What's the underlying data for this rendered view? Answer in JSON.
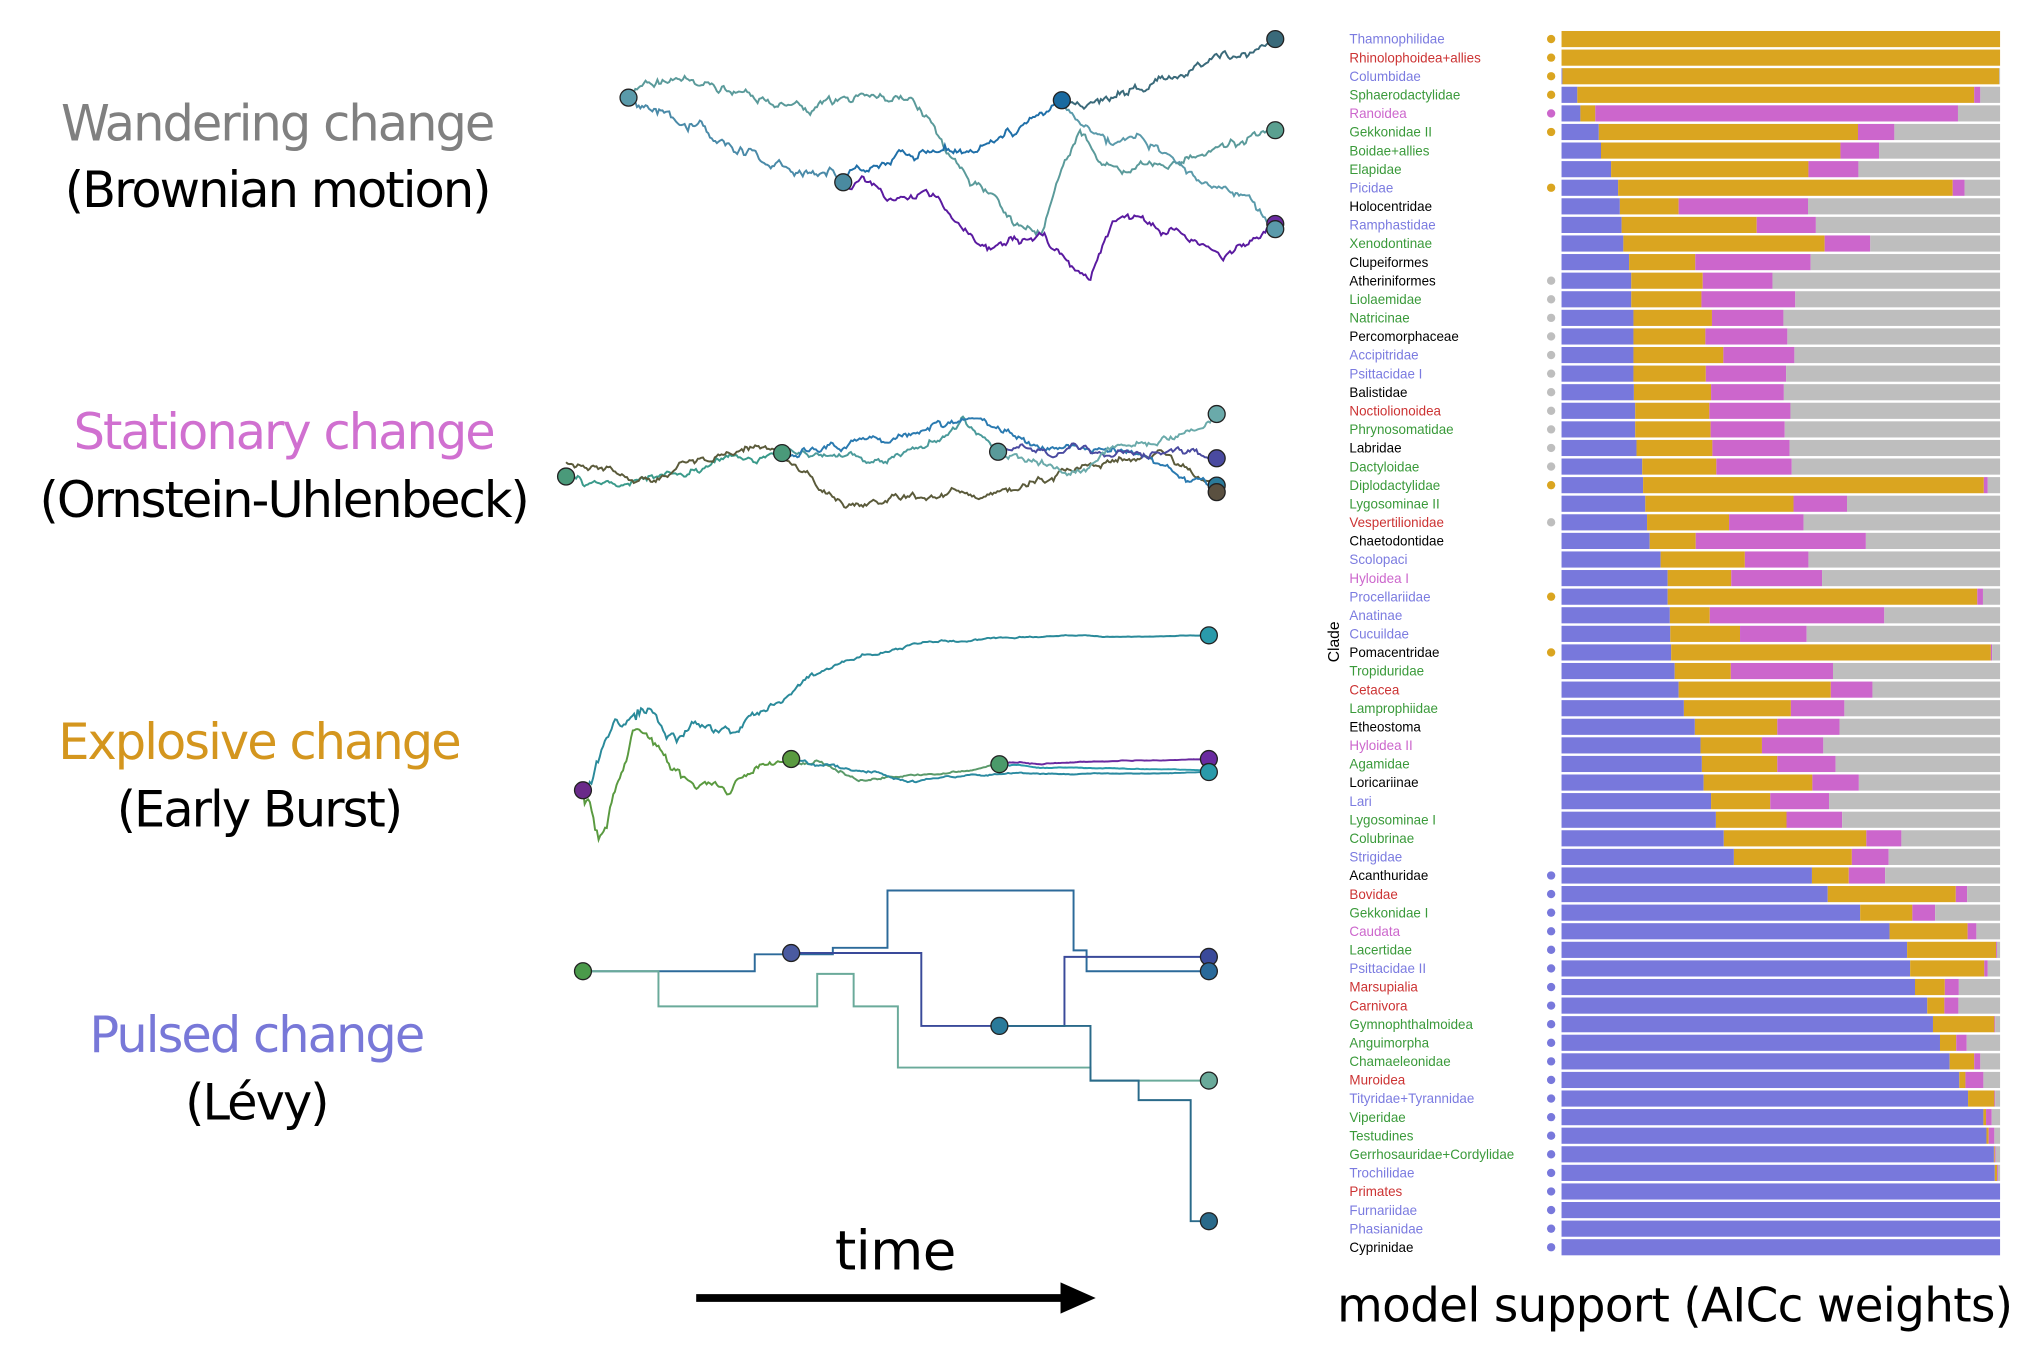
{
  "models": [
    {
      "name": "Wandering change",
      "method": "(Brownian motion)",
      "color": "#808080"
    },
    {
      "name": "Stationary change",
      "method": "(Ornstein-Uhlenbeck)",
      "color": "#d070d0"
    },
    {
      "name": "Explosive change",
      "method": "(Early Burst)",
      "color": "#d4961e"
    },
    {
      "name": "Pulsed change",
      "method": "(Lévy)",
      "color": "#7878d8"
    }
  ],
  "time_label": "time",
  "chart_title": "model support (AICc weights)",
  "chart_data": {
    "type": "bar",
    "orientation": "horizontal-stacked",
    "ylabel": "Clade",
    "xlim": [
      0,
      1
    ],
    "series_colors": {
      "BM": "#7878dc",
      "EB": "#daa520",
      "OU": "#cc66cc",
      "Levy": "#bebebe"
    },
    "group_colors": {
      "bird": "#7b7be0",
      "mammal": "#cc3333",
      "reptile": "#3a9a3a",
      "amphibian": "#cc66cc",
      "fish": "#000000"
    },
    "dot_colors": {
      "gold": "#daa520",
      "pink": "#cc66cc",
      "gray": "#bebebe",
      "blue": "#7878dc"
    },
    "columns": [
      "clade",
      "group",
      "best_dot",
      "BM",
      "EB",
      "OU",
      "Levy"
    ],
    "rows": [
      [
        "Thamnophilidae",
        "bird",
        "gold",
        0,
        1,
        0,
        0
      ],
      [
        "Rhinolophoidea+allies",
        "mammal",
        "gold",
        0,
        1,
        0,
        0
      ],
      [
        "Columbidae",
        "bird",
        "gold",
        0.002,
        0.996,
        0,
        0.002
      ],
      [
        "Sphaerodactylidae",
        "reptile",
        "gold",
        0.036,
        0.905,
        0.014,
        0.045
      ],
      [
        "Ranoidea",
        "amphibian",
        "pink",
        0.043,
        0.034,
        0.827,
        0.096
      ],
      [
        "Gekkonidae II",
        "reptile",
        "gold",
        0.085,
        0.591,
        0.083,
        0.241
      ],
      [
        "Boidae+allies",
        "reptile",
        null,
        0.09,
        0.546,
        0.088,
        0.276
      ],
      [
        "Elapidae",
        "reptile",
        null,
        0.113,
        0.45,
        0.114,
        0.323
      ],
      [
        "Picidae",
        "bird",
        "gold",
        0.129,
        0.763,
        0.027,
        0.081
      ],
      [
        "Holocentridae",
        "fish",
        null,
        0.133,
        0.134,
        0.295,
        0.438
      ],
      [
        "Ramphastidae",
        "bird",
        null,
        0.137,
        0.308,
        0.135,
        0.42
      ],
      [
        "Xenodontinae",
        "reptile",
        null,
        0.141,
        0.459,
        0.104,
        0.296
      ],
      [
        "Clupeiformes",
        "fish",
        null,
        0.154,
        0.151,
        0.263,
        0.432
      ],
      [
        "Atheriniformes",
        "fish",
        "gray",
        0.159,
        0.163,
        0.159,
        0.519
      ],
      [
        "Liolaemidae",
        "reptile",
        "gray",
        0.159,
        0.16,
        0.214,
        0.467
      ],
      [
        "Natricinae",
        "reptile",
        "gray",
        0.164,
        0.179,
        0.163,
        0.494
      ],
      [
        "Percomorphaceae",
        "fish",
        "gray",
        0.164,
        0.164,
        0.187,
        0.485
      ],
      [
        "Accipitridae",
        "bird",
        "gray",
        0.164,
        0.205,
        0.162,
        0.469
      ],
      [
        "Psittacidae I",
        "bird",
        "gray",
        0.164,
        0.165,
        0.183,
        0.488
      ],
      [
        "Balistidae",
        "fish",
        "gray",
        0.165,
        0.176,
        0.166,
        0.493
      ],
      [
        "Noctiolionoidea",
        "mammal",
        "gray",
        0.168,
        0.169,
        0.185,
        0.478
      ],
      [
        "Phrynosomatidae",
        "reptile",
        "gray",
        0.168,
        0.172,
        0.169,
        0.491
      ],
      [
        "Labridae",
        "fish",
        "gray",
        0.171,
        0.173,
        0.176,
        0.48
      ],
      [
        "Dactyloidae",
        "reptile",
        "gray",
        0.184,
        0.169,
        0.172,
        0.475
      ],
      [
        "Diplodactylidae",
        "reptile",
        "gold",
        0.186,
        0.777,
        0.009,
        0.028
      ],
      [
        "Lygosominae II",
        "reptile",
        null,
        0.191,
        0.338,
        0.122,
        0.349
      ],
      [
        "Vespertilionidae",
        "mammal",
        "gray",
        0.195,
        0.187,
        0.17,
        0.448
      ],
      [
        "Chaetodontidae",
        "fish",
        null,
        0.201,
        0.105,
        0.388,
        0.306
      ],
      [
        "Scolopaci",
        "bird",
        null,
        0.226,
        0.192,
        0.145,
        0.437
      ],
      [
        "Hyloidea I",
        "amphibian",
        null,
        0.242,
        0.145,
        0.207,
        0.406
      ],
      [
        "Procellariidae",
        "bird",
        "gold",
        0.242,
        0.706,
        0.013,
        0.039
      ],
      [
        "Anatinae",
        "bird",
        null,
        0.247,
        0.091,
        0.398,
        0.264
      ],
      [
        "Cucuildae",
        "bird",
        null,
        0.248,
        0.159,
        0.152,
        0.441
      ],
      [
        "Pomacentridae",
        "fish",
        "gold",
        0.25,
        0.729,
        0.003,
        0.018
      ],
      [
        "Tropiduridae",
        "reptile",
        null,
        0.258,
        0.128,
        0.233,
        0.381
      ],
      [
        "Cetacea",
        "mammal",
        null,
        0.267,
        0.347,
        0.095,
        0.291
      ],
      [
        "Lamprophiidae",
        "reptile",
        null,
        0.279,
        0.244,
        0.122,
        0.355
      ],
      [
        "Etheostoma",
        "fish",
        null,
        0.304,
        0.188,
        0.142,
        0.366
      ],
      [
        "Hyloidea II",
        "amphibian",
        null,
        0.317,
        0.14,
        0.14,
        0.403
      ],
      [
        "Agamidae",
        "reptile",
        null,
        0.32,
        0.172,
        0.133,
        0.375
      ],
      [
        "Loricariinae",
        "fish",
        null,
        0.324,
        0.248,
        0.106,
        0.322
      ],
      [
        "Lari",
        "bird",
        null,
        0.341,
        0.135,
        0.134,
        0.39
      ],
      [
        "Lygosominae I",
        "reptile",
        null,
        0.352,
        0.161,
        0.127,
        0.36
      ],
      [
        "Colubrinae",
        "reptile",
        null,
        0.37,
        0.325,
        0.08,
        0.225
      ],
      [
        "Strigidae",
        "bird",
        null,
        0.393,
        0.269,
        0.084,
        0.254
      ],
      [
        "Acanthuridae",
        "fish",
        "blue",
        0.571,
        0.084,
        0.083,
        0.262
      ],
      [
        "Bovidae",
        "mammal",
        "blue",
        0.607,
        0.292,
        0.026,
        0.075
      ],
      [
        "Gekkonidae I",
        "reptile",
        "blue",
        0.681,
        0.119,
        0.052,
        0.148
      ],
      [
        "Caudata",
        "amphibian",
        "blue",
        0.748,
        0.178,
        0.02,
        0.054
      ],
      [
        "Lacertidae",
        "reptile",
        "blue",
        0.788,
        0.203,
        0.002,
        0.007
      ],
      [
        "Psittacidae II",
        "bird",
        "blue",
        0.795,
        0.169,
        0.008,
        0.028
      ],
      [
        "Marsupialia",
        "mammal",
        "blue",
        0.806,
        0.068,
        0.032,
        0.094
      ],
      [
        "Carnivora",
        "mammal",
        "blue",
        0.834,
        0.039,
        0.032,
        0.095
      ],
      [
        "Gymnophthalmoidea",
        "reptile",
        "blue",
        0.847,
        0.14,
        0.002,
        0.011
      ],
      [
        "Anguimorpha",
        "reptile",
        "blue",
        0.863,
        0.037,
        0.024,
        0.076
      ],
      [
        "Chamaeleonidae",
        "reptile",
        "blue",
        0.885,
        0.056,
        0.014,
        0.045
      ],
      [
        "Muroidea",
        "mammal",
        "blue",
        0.907,
        0.014,
        0.041,
        0.038
      ],
      [
        "Tityridae+Tyrannidae",
        "bird",
        "blue",
        0.927,
        0.06,
        0.002,
        0.011
      ],
      [
        "Viperidae",
        "reptile",
        "blue",
        0.962,
        0.006,
        0.013,
        0.019
      ],
      [
        "Testudines",
        "reptile",
        "blue",
        0.969,
        0.005,
        0.013,
        0.013
      ],
      [
        "Gerrhosauridae+Cordylidae",
        "reptile",
        "blue",
        0.986,
        0.002,
        0.002,
        0.01
      ],
      [
        "Trochilidae",
        "bird",
        "blue",
        0.988,
        0.005,
        0.002,
        0.005
      ],
      [
        "Primates",
        "mammal",
        "blue",
        1,
        0,
        0,
        0
      ],
      [
        "Furnariidae",
        "bird",
        "blue",
        1,
        0,
        0,
        0
      ],
      [
        "Phasianidae",
        "bird",
        "blue",
        1,
        0,
        0,
        0
      ],
      [
        "Cyprinidae",
        "fish",
        "blue",
        1,
        0,
        0,
        0
      ]
    ]
  }
}
